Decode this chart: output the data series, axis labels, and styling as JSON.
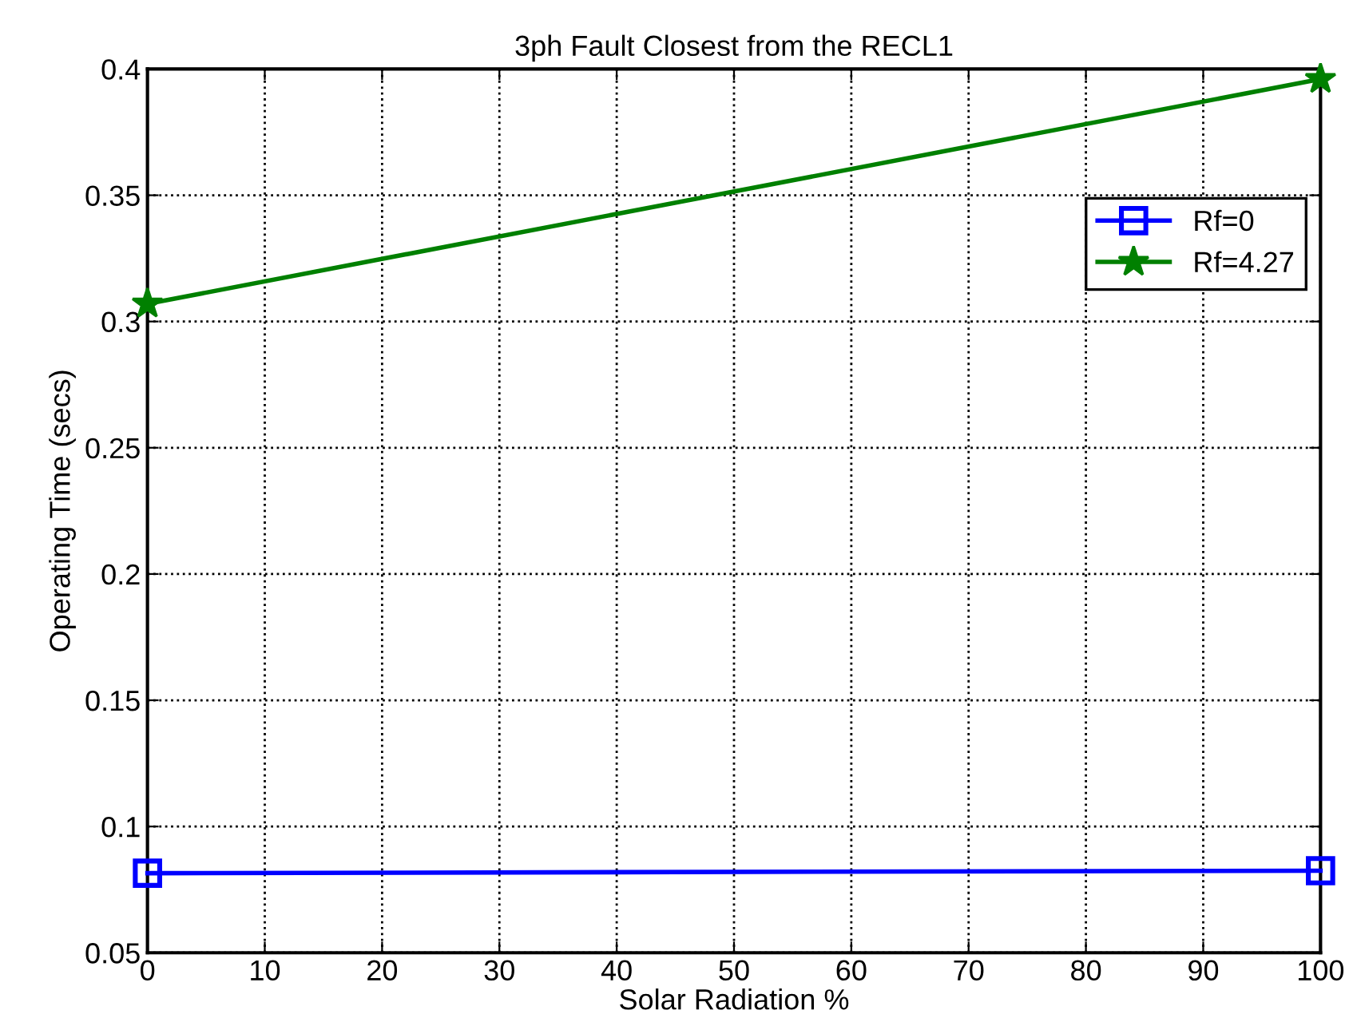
{
  "chart_data": {
    "type": "line",
    "title": "3ph Fault Closest from the RECL1",
    "xlabel": "Solar Radiation %",
    "ylabel": "Operating Time (secs)",
    "x": [
      0,
      100
    ],
    "series": [
      {
        "name": "Rf=0",
        "color": "#0000ff",
        "values": [
          0.0815,
          0.0825
        ],
        "marker": "square"
      },
      {
        "name": "Rf=4.27",
        "color": "#008000",
        "values": [
          0.307,
          0.396
        ],
        "marker": "star"
      }
    ],
    "xlim": [
      0,
      100
    ],
    "xticks": [
      0,
      10,
      20,
      30,
      40,
      50,
      60,
      70,
      80,
      90,
      100
    ],
    "ylim": [
      0.05,
      0.4
    ],
    "yticks": [
      0.05,
      0.1,
      0.15,
      0.2,
      0.25,
      0.3,
      0.35,
      0.4
    ],
    "grid": true,
    "legend": "top right",
    "line_style": "solid"
  }
}
